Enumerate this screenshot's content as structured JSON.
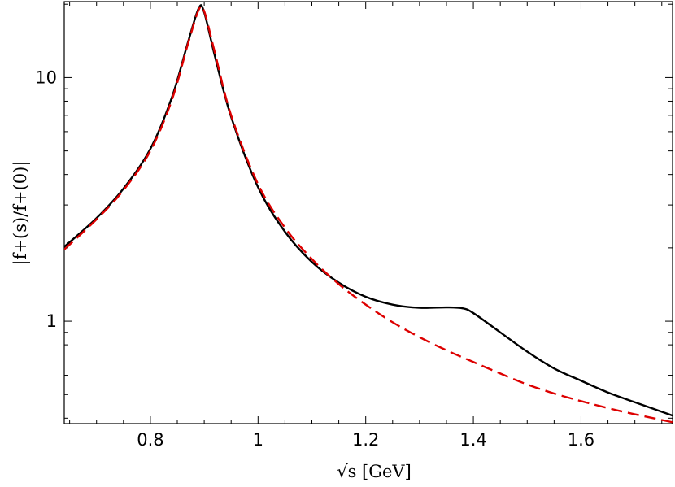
{
  "chart_data": {
    "type": "line",
    "xlabel": "√s [GeV]",
    "ylabel": "|f+(s)/f+(0)|",
    "x_scale": "linear",
    "y_scale": "log",
    "xlim": [
      0.64,
      1.77
    ],
    "ylim": [
      0.38,
      20.5
    ],
    "grid": false,
    "x_ticks": [
      0.8,
      1.0,
      1.2,
      1.4,
      1.6
    ],
    "x_tick_labels": [
      "0.8",
      "1",
      "1.2",
      "1.4",
      "1.6"
    ],
    "y_ticks": [
      1,
      10
    ],
    "y_tick_labels": [
      "1",
      "10"
    ],
    "series": [
      {
        "color": "#000000",
        "dash": "solid",
        "x": [
          0.64,
          0.7,
          0.75,
          0.8,
          0.84,
          0.87,
          0.89,
          0.9,
          0.92,
          0.95,
          1.0,
          1.05,
          1.1,
          1.15,
          1.2,
          1.25,
          1.3,
          1.35,
          1.38,
          1.4,
          1.45,
          1.5,
          1.55,
          1.6,
          1.65,
          1.7,
          1.77
        ],
        "y": [
          2.02,
          2.65,
          3.5,
          5.1,
          8.3,
          14.0,
          19.3,
          18.5,
          12.2,
          6.9,
          3.55,
          2.33,
          1.75,
          1.44,
          1.26,
          1.17,
          1.135,
          1.14,
          1.13,
          1.08,
          0.9,
          0.75,
          0.64,
          0.57,
          0.51,
          0.465,
          0.41
        ]
      },
      {
        "color": "#dd0000",
        "dash": "dashed",
        "x": [
          0.64,
          0.7,
          0.75,
          0.8,
          0.84,
          0.87,
          0.89,
          0.9,
          0.92,
          0.95,
          1.0,
          1.05,
          1.1,
          1.15,
          1.2,
          1.25,
          1.3,
          1.35,
          1.4,
          1.45,
          1.5,
          1.55,
          1.6,
          1.65,
          1.7,
          1.77
        ],
        "y": [
          1.97,
          2.62,
          3.45,
          5.0,
          8.1,
          13.8,
          19.0,
          18.7,
          12.6,
          7.0,
          3.65,
          2.42,
          1.8,
          1.42,
          1.17,
          0.99,
          0.86,
          0.76,
          0.68,
          0.61,
          0.55,
          0.505,
          0.47,
          0.44,
          0.415,
          0.385
        ]
      }
    ]
  }
}
